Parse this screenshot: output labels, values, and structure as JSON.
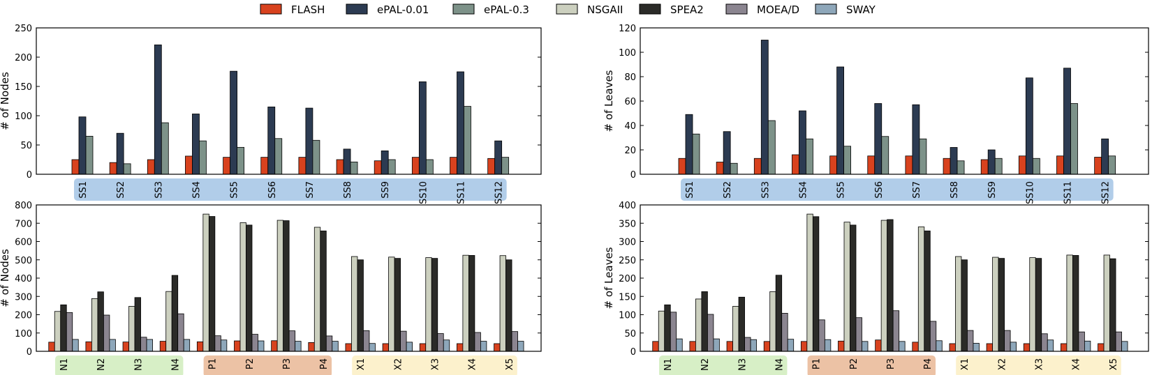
{
  "legend": [
    {
      "name": "FLASH",
      "color": "#d8421e"
    },
    {
      "name": "ePAL-0.01",
      "color": "#2c3b52"
    },
    {
      "name": "ePAL-0.3",
      "color": "#7d9289"
    },
    {
      "name": "NSGAII",
      "color": "#ccd0bf"
    },
    {
      "name": "SPEA2",
      "color": "#2b2b28"
    },
    {
      "name": "MOEA/D",
      "color": "#8b8590"
    },
    {
      "name": "SWAY",
      "color": "#8ea7ba"
    }
  ],
  "group_colors": {
    "SS": "#b1cde9",
    "N": "#d7efc6",
    "P": "#ecc2a5",
    "X": "#fcf1cc"
  },
  "chart_data": [
    {
      "type": "bar",
      "ylabel": "# of Nodes",
      "ylim": [
        0,
        250
      ],
      "yticks": [
        0,
        50,
        100,
        150,
        200,
        250
      ],
      "legend_position": "top",
      "categories": [
        "SS1",
        "SS2",
        "SS3",
        "SS4",
        "SS5",
        "SS6",
        "SS7",
        "SS8",
        "SS9",
        "SS10",
        "SS11",
        "SS12"
      ],
      "category_groups": [
        {
          "key": "SS",
          "from": 0,
          "to": 11
        }
      ],
      "series": [
        {
          "name": "FLASH",
          "values": [
            25,
            20,
            25,
            31,
            29,
            29,
            29,
            25,
            23,
            29,
            29,
            27
          ]
        },
        {
          "name": "ePAL-0.01",
          "values": [
            98,
            70,
            221,
            103,
            176,
            115,
            113,
            43,
            40,
            158,
            175,
            57
          ]
        },
        {
          "name": "ePAL-0.3",
          "values": [
            65,
            18,
            88,
            57,
            46,
            61,
            58,
            21,
            25,
            25,
            116,
            29
          ]
        }
      ]
    },
    {
      "type": "bar",
      "ylabel": "# of Leaves",
      "ylim": [
        0,
        120
      ],
      "yticks": [
        0,
        20,
        40,
        60,
        80,
        100,
        120
      ],
      "legend_position": "top",
      "categories": [
        "SS1",
        "SS2",
        "SS3",
        "SS4",
        "SS5",
        "SS6",
        "SS7",
        "SS8",
        "SS9",
        "SS10",
        "SS11",
        "SS12"
      ],
      "category_groups": [
        {
          "key": "SS",
          "from": 0,
          "to": 11
        }
      ],
      "series": [
        {
          "name": "FLASH",
          "values": [
            13,
            10,
            13,
            16,
            15,
            15,
            15,
            13,
            12,
            15,
            15,
            14
          ]
        },
        {
          "name": "ePAL-0.01",
          "values": [
            49,
            35,
            110,
            52,
            88,
            58,
            57,
            22,
            20,
            79,
            87,
            29
          ]
        },
        {
          "name": "ePAL-0.3",
          "values": [
            33,
            9,
            44,
            29,
            23,
            31,
            29,
            11,
            13,
            13,
            58,
            15
          ]
        }
      ]
    },
    {
      "type": "bar",
      "ylabel": "# of Nodes",
      "ylim": [
        0,
        800
      ],
      "yticks": [
        0,
        100,
        200,
        300,
        400,
        500,
        600,
        700,
        800
      ],
      "legend_position": "top",
      "categories": [
        "N1",
        "N2",
        "N3",
        "N4",
        "P1",
        "P2",
        "P3",
        "P4",
        "X1",
        "X2",
        "X3",
        "X4",
        "X5"
      ],
      "category_groups": [
        {
          "key": "N",
          "from": 0,
          "to": 3
        },
        {
          "key": "P",
          "from": 4,
          "to": 7
        },
        {
          "key": "X",
          "from": 8,
          "to": 12
        }
      ],
      "series": [
        {
          "name": "FLASH",
          "values": [
            50,
            52,
            51,
            55,
            52,
            57,
            58,
            48,
            42,
            42,
            42,
            42,
            42
          ]
        },
        {
          "name": "NSGAII",
          "values": [
            218,
            288,
            246,
            327,
            750,
            703,
            716,
            678,
            518,
            515,
            512,
            525,
            523
          ]
        },
        {
          "name": "SPEA2",
          "values": [
            254,
            325,
            294,
            415,
            737,
            690,
            714,
            658,
            500,
            508,
            508,
            524,
            500
          ]
        },
        {
          "name": "MOEA/D",
          "values": [
            212,
            198,
            77,
            205,
            85,
            93,
            112,
            84,
            113,
            110,
            97,
            103,
            108
          ]
        },
        {
          "name": "SWAY",
          "values": [
            65,
            65,
            65,
            65,
            62,
            57,
            55,
            55,
            43,
            50,
            62,
            55,
            55
          ]
        }
      ]
    },
    {
      "type": "bar",
      "ylabel": "# of Leaves",
      "ylim": [
        0,
        400
      ],
      "yticks": [
        0,
        50,
        100,
        150,
        200,
        250,
        300,
        350,
        400
      ],
      "legend_position": "top",
      "categories": [
        "N1",
        "N2",
        "N3",
        "N4",
        "P1",
        "P2",
        "P3",
        "P4",
        "X1",
        "X2",
        "X3",
        "X4",
        "X5"
      ],
      "category_groups": [
        {
          "key": "N",
          "from": 0,
          "to": 3
        },
        {
          "key": "P",
          "from": 4,
          "to": 7
        },
        {
          "key": "X",
          "from": 8,
          "to": 12
        }
      ],
      "series": [
        {
          "name": "FLASH",
          "values": [
            27,
            27,
            27,
            27,
            27,
            28,
            31,
            25,
            21,
            21,
            21,
            21,
            21
          ]
        },
        {
          "name": "NSGAII",
          "values": [
            110,
            143,
            123,
            163,
            375,
            353,
            358,
            340,
            259,
            257,
            256,
            263,
            263
          ]
        },
        {
          "name": "SPEA2",
          "values": [
            127,
            163,
            148,
            208,
            368,
            345,
            360,
            329,
            250,
            254,
            254,
            262,
            253
          ]
        },
        {
          "name": "MOEA/D",
          "values": [
            107,
            101,
            38,
            104,
            86,
            92,
            111,
            82,
            57,
            57,
            48,
            53,
            53
          ]
        },
        {
          "name": "SWAY",
          "values": [
            34,
            34,
            32,
            33,
            32,
            27,
            27,
            29,
            22,
            25,
            31,
            28,
            27
          ]
        }
      ]
    }
  ]
}
